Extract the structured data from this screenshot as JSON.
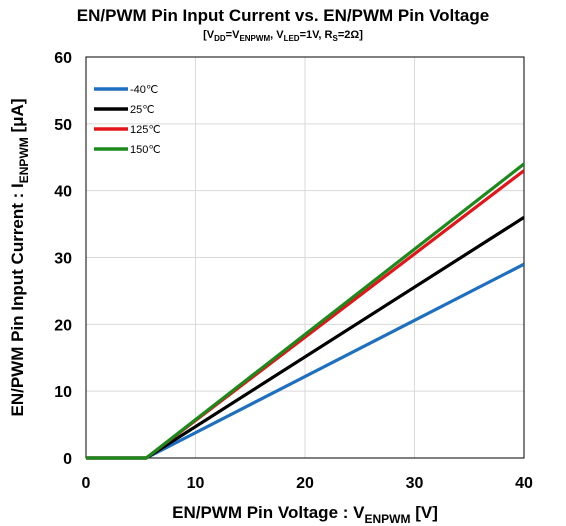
{
  "chart_data": {
    "type": "line",
    "title": "EN/PWM Pin Input Current vs. EN/PWM Pin Voltage",
    "subtitle": {
      "parts": [
        {
          "t": "[V"
        },
        {
          "t": "DD",
          "sub": true
        },
        {
          "t": "=V"
        },
        {
          "t": "ENPWM",
          "sub": true
        },
        {
          "t": ", V"
        },
        {
          "t": "LED",
          "sub": true
        },
        {
          "t": "=1V, R"
        },
        {
          "t": "S",
          "sub": true
        },
        {
          "t": "=2Ω]"
        }
      ]
    },
    "xlabel": {
      "parts": [
        {
          "t": "EN/PWM Pin Voltage : V"
        },
        {
          "t": "ENPWM",
          "sub": true
        },
        {
          "t": " [V]"
        }
      ]
    },
    "ylabel": {
      "parts": [
        {
          "t": "EN/PWM Pin Input Current :  I"
        },
        {
          "t": "ENPWM",
          "sub": true
        },
        {
          "t": " [μA]"
        }
      ]
    },
    "xlim": [
      0,
      40
    ],
    "ylim": [
      0,
      60
    ],
    "xticks": [
      0,
      10,
      20,
      30,
      40
    ],
    "yticks": [
      0,
      10,
      20,
      30,
      40,
      50,
      60
    ],
    "grid": true,
    "legend_position": "top-left",
    "series": [
      {
        "name": "-40℃",
        "color": "#1f6fc0",
        "x": [
          0,
          5,
          5.5,
          40
        ],
        "y": [
          0,
          0,
          0,
          29
        ]
      },
      {
        "name": "25℃",
        "color": "#000000",
        "x": [
          0,
          5,
          5.5,
          40
        ],
        "y": [
          0,
          0,
          0,
          36
        ]
      },
      {
        "name": "125℃",
        "color": "#e3151a",
        "x": [
          0,
          5,
          5.5,
          40
        ],
        "y": [
          0,
          0,
          0,
          43
        ]
      },
      {
        "name": "150℃",
        "color": "#1b8a1b",
        "x": [
          0,
          5,
          5.5,
          40
        ],
        "y": [
          0,
          0,
          0,
          44
        ]
      }
    ]
  }
}
